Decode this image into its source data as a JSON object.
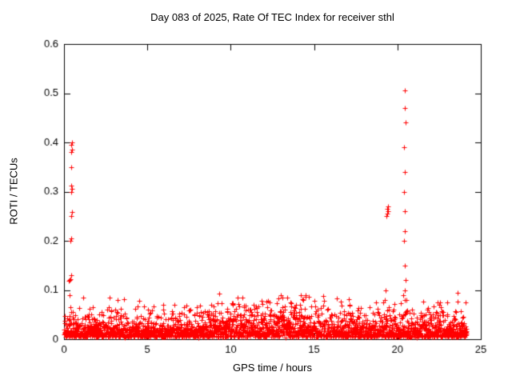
{
  "chart_data": {
    "type": "scatter",
    "title": "Day 083 of 2025, Rate Of TEC Index for receiver sthl",
    "xlabel": "GPS time / hours",
    "ylabel": "ROTI / TECUs",
    "xlim": [
      0,
      25
    ],
    "ylim": [
      0,
      0.6
    ],
    "grid": false,
    "legend": "none",
    "marker": "plus",
    "marker_color": "#ff0000",
    "axis_color": "#000000",
    "background": "#ffffff",
    "xticks": [
      {
        "v": 0,
        "label": "0"
      },
      {
        "v": 5,
        "label": "5"
      },
      {
        "v": 10,
        "label": "10"
      },
      {
        "v": 15,
        "label": "15"
      },
      {
        "v": 20,
        "label": "20"
      },
      {
        "v": 25,
        "label": "25"
      }
    ],
    "yticks": [
      {
        "v": 0,
        "label": "0"
      },
      {
        "v": 0.1,
        "label": "0.1"
      },
      {
        "v": 0.2,
        "label": "0.2"
      },
      {
        "v": 0.3,
        "label": "0.3"
      },
      {
        "v": 0.4,
        "label": "0.4"
      },
      {
        "v": 0.5,
        "label": "0.5"
      },
      {
        "v": 0.6,
        "label": "0.6"
      }
    ],
    "baseline": {
      "description": "dense low-level ROTI noise band across full day, mostly 0.005-0.06 TECU",
      "seed": 83,
      "n": 2600,
      "x_span": 24.15,
      "y_floor": 0.004,
      "y_scale": 0.016,
      "envelope": [
        {
          "center": 12.5,
          "sigma": 3.2,
          "amp": 0.6
        },
        {
          "center": 22.5,
          "sigma": 1.5,
          "amp": 0.25
        },
        {
          "center": 0.5,
          "sigma": 0.5,
          "amp": 0.3
        }
      ]
    },
    "outliers": [
      [
        0.3,
        0.118
      ],
      [
        0.33,
        0.09
      ],
      [
        0.35,
        0.12
      ],
      [
        0.38,
        0.122
      ],
      [
        0.42,
        0.13
      ],
      [
        0.4,
        0.2
      ],
      [
        0.44,
        0.205
      ],
      [
        0.43,
        0.25
      ],
      [
        0.47,
        0.258
      ],
      [
        0.44,
        0.3
      ],
      [
        0.46,
        0.305
      ],
      [
        0.42,
        0.312
      ],
      [
        0.45,
        0.35
      ],
      [
        0.43,
        0.38
      ],
      [
        0.46,
        0.385
      ],
      [
        0.44,
        0.395
      ],
      [
        0.47,
        0.4
      ],
      [
        0.36,
        0.065
      ],
      [
        0.52,
        0.055
      ],
      [
        2.1,
        0.05
      ],
      [
        3.4,
        0.048
      ],
      [
        6.5,
        0.052
      ],
      [
        7.2,
        0.05
      ],
      [
        8.1,
        0.048
      ],
      [
        9.8,
        0.055
      ],
      [
        10.3,
        0.062
      ],
      [
        10.8,
        0.068
      ],
      [
        11.2,
        0.06
      ],
      [
        11.9,
        0.072
      ],
      [
        12.4,
        0.058
      ],
      [
        13.1,
        0.065
      ],
      [
        13.6,
        0.075
      ],
      [
        13.9,
        0.07
      ],
      [
        14.3,
        0.082
      ],
      [
        14.5,
        0.09
      ],
      [
        14.7,
        0.086
      ],
      [
        15.0,
        0.078
      ],
      [
        15.2,
        0.06
      ],
      [
        16.2,
        0.05
      ],
      [
        18.8,
        0.062
      ],
      [
        19.2,
        0.05
      ],
      [
        19.25,
        0.08
      ],
      [
        19.3,
        0.1
      ],
      [
        19.35,
        0.25
      ],
      [
        19.4,
        0.255
      ],
      [
        19.45,
        0.26
      ],
      [
        19.38,
        0.265
      ],
      [
        19.42,
        0.27
      ],
      [
        19.5,
        0.06
      ],
      [
        20.35,
        0.09
      ],
      [
        20.4,
        0.2
      ],
      [
        20.4,
        0.39
      ],
      [
        20.41,
        0.3
      ],
      [
        20.42,
        0.1
      ],
      [
        20.42,
        0.47
      ],
      [
        20.43,
        0.22
      ],
      [
        20.44,
        0.34
      ],
      [
        20.45,
        0.15
      ],
      [
        20.45,
        0.505
      ],
      [
        20.46,
        0.26
      ],
      [
        20.47,
        0.44
      ],
      [
        20.5,
        0.12
      ],
      [
        20.55,
        0.08
      ],
      [
        21.9,
        0.055
      ],
      [
        22.4,
        0.075
      ],
      [
        22.5,
        0.07
      ],
      [
        22.6,
        0.065
      ],
      [
        23.0,
        0.05
      ]
    ]
  }
}
